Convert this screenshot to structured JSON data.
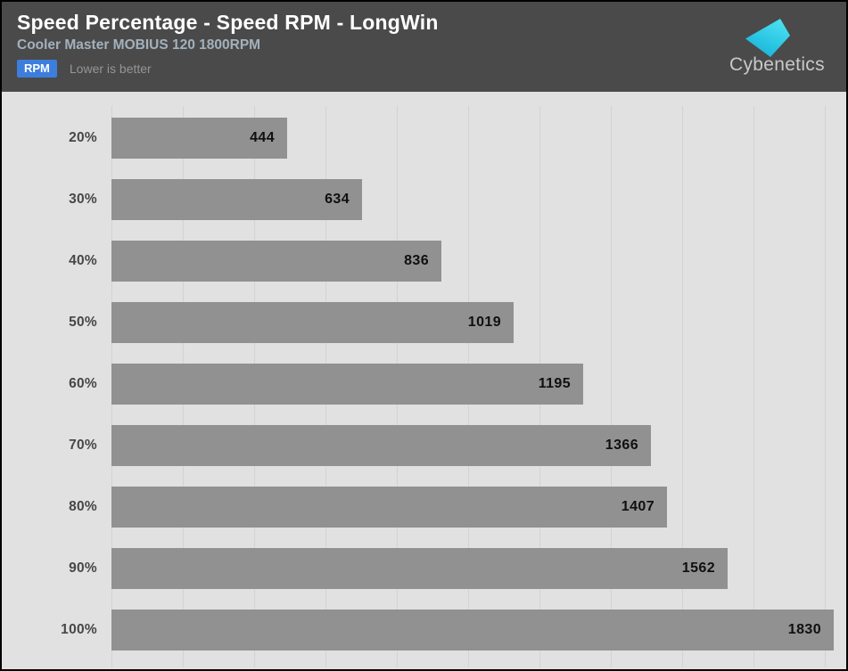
{
  "header": {
    "title": "Speed Percentage - Speed RPM - LongWin",
    "subtitle": "Cooler Master MOBIUS 120 1800RPM",
    "badge_label": "RPM",
    "note": "Lower is better"
  },
  "logo": {
    "text": "Cybenetics",
    "icon": "cybenetics-diamond-icon"
  },
  "colors": {
    "header_bg": "#4a4a4a",
    "chart_bg": "#e1e1e1",
    "bar": "#919191",
    "gridline": "#d3d3d3",
    "badge_blue": "#3d7edd",
    "logo_cyan": "#2cc7e4",
    "value_text": "#101010",
    "title_text": "#ffffff",
    "subtitle_text": "#a3b1bd"
  },
  "chart_data": {
    "type": "bar",
    "orientation": "horizontal",
    "title": "Speed Percentage - Speed RPM - LongWin",
    "subtitle": "Cooler Master MOBIUS 120 1800RPM",
    "unit": "RPM",
    "lower_is_better": true,
    "categories": [
      "20%",
      "30%",
      "40%",
      "50%",
      "60%",
      "70%",
      "80%",
      "90%",
      "100%"
    ],
    "values": [
      444,
      634,
      836,
      1019,
      1195,
      1366,
      1407,
      1562,
      1830
    ],
    "xlabel": "",
    "ylabel": "Speed Percentage",
    "xlim": [
      0,
      1830
    ],
    "grid": true,
    "legend": false,
    "value_labels": "inside-end"
  }
}
